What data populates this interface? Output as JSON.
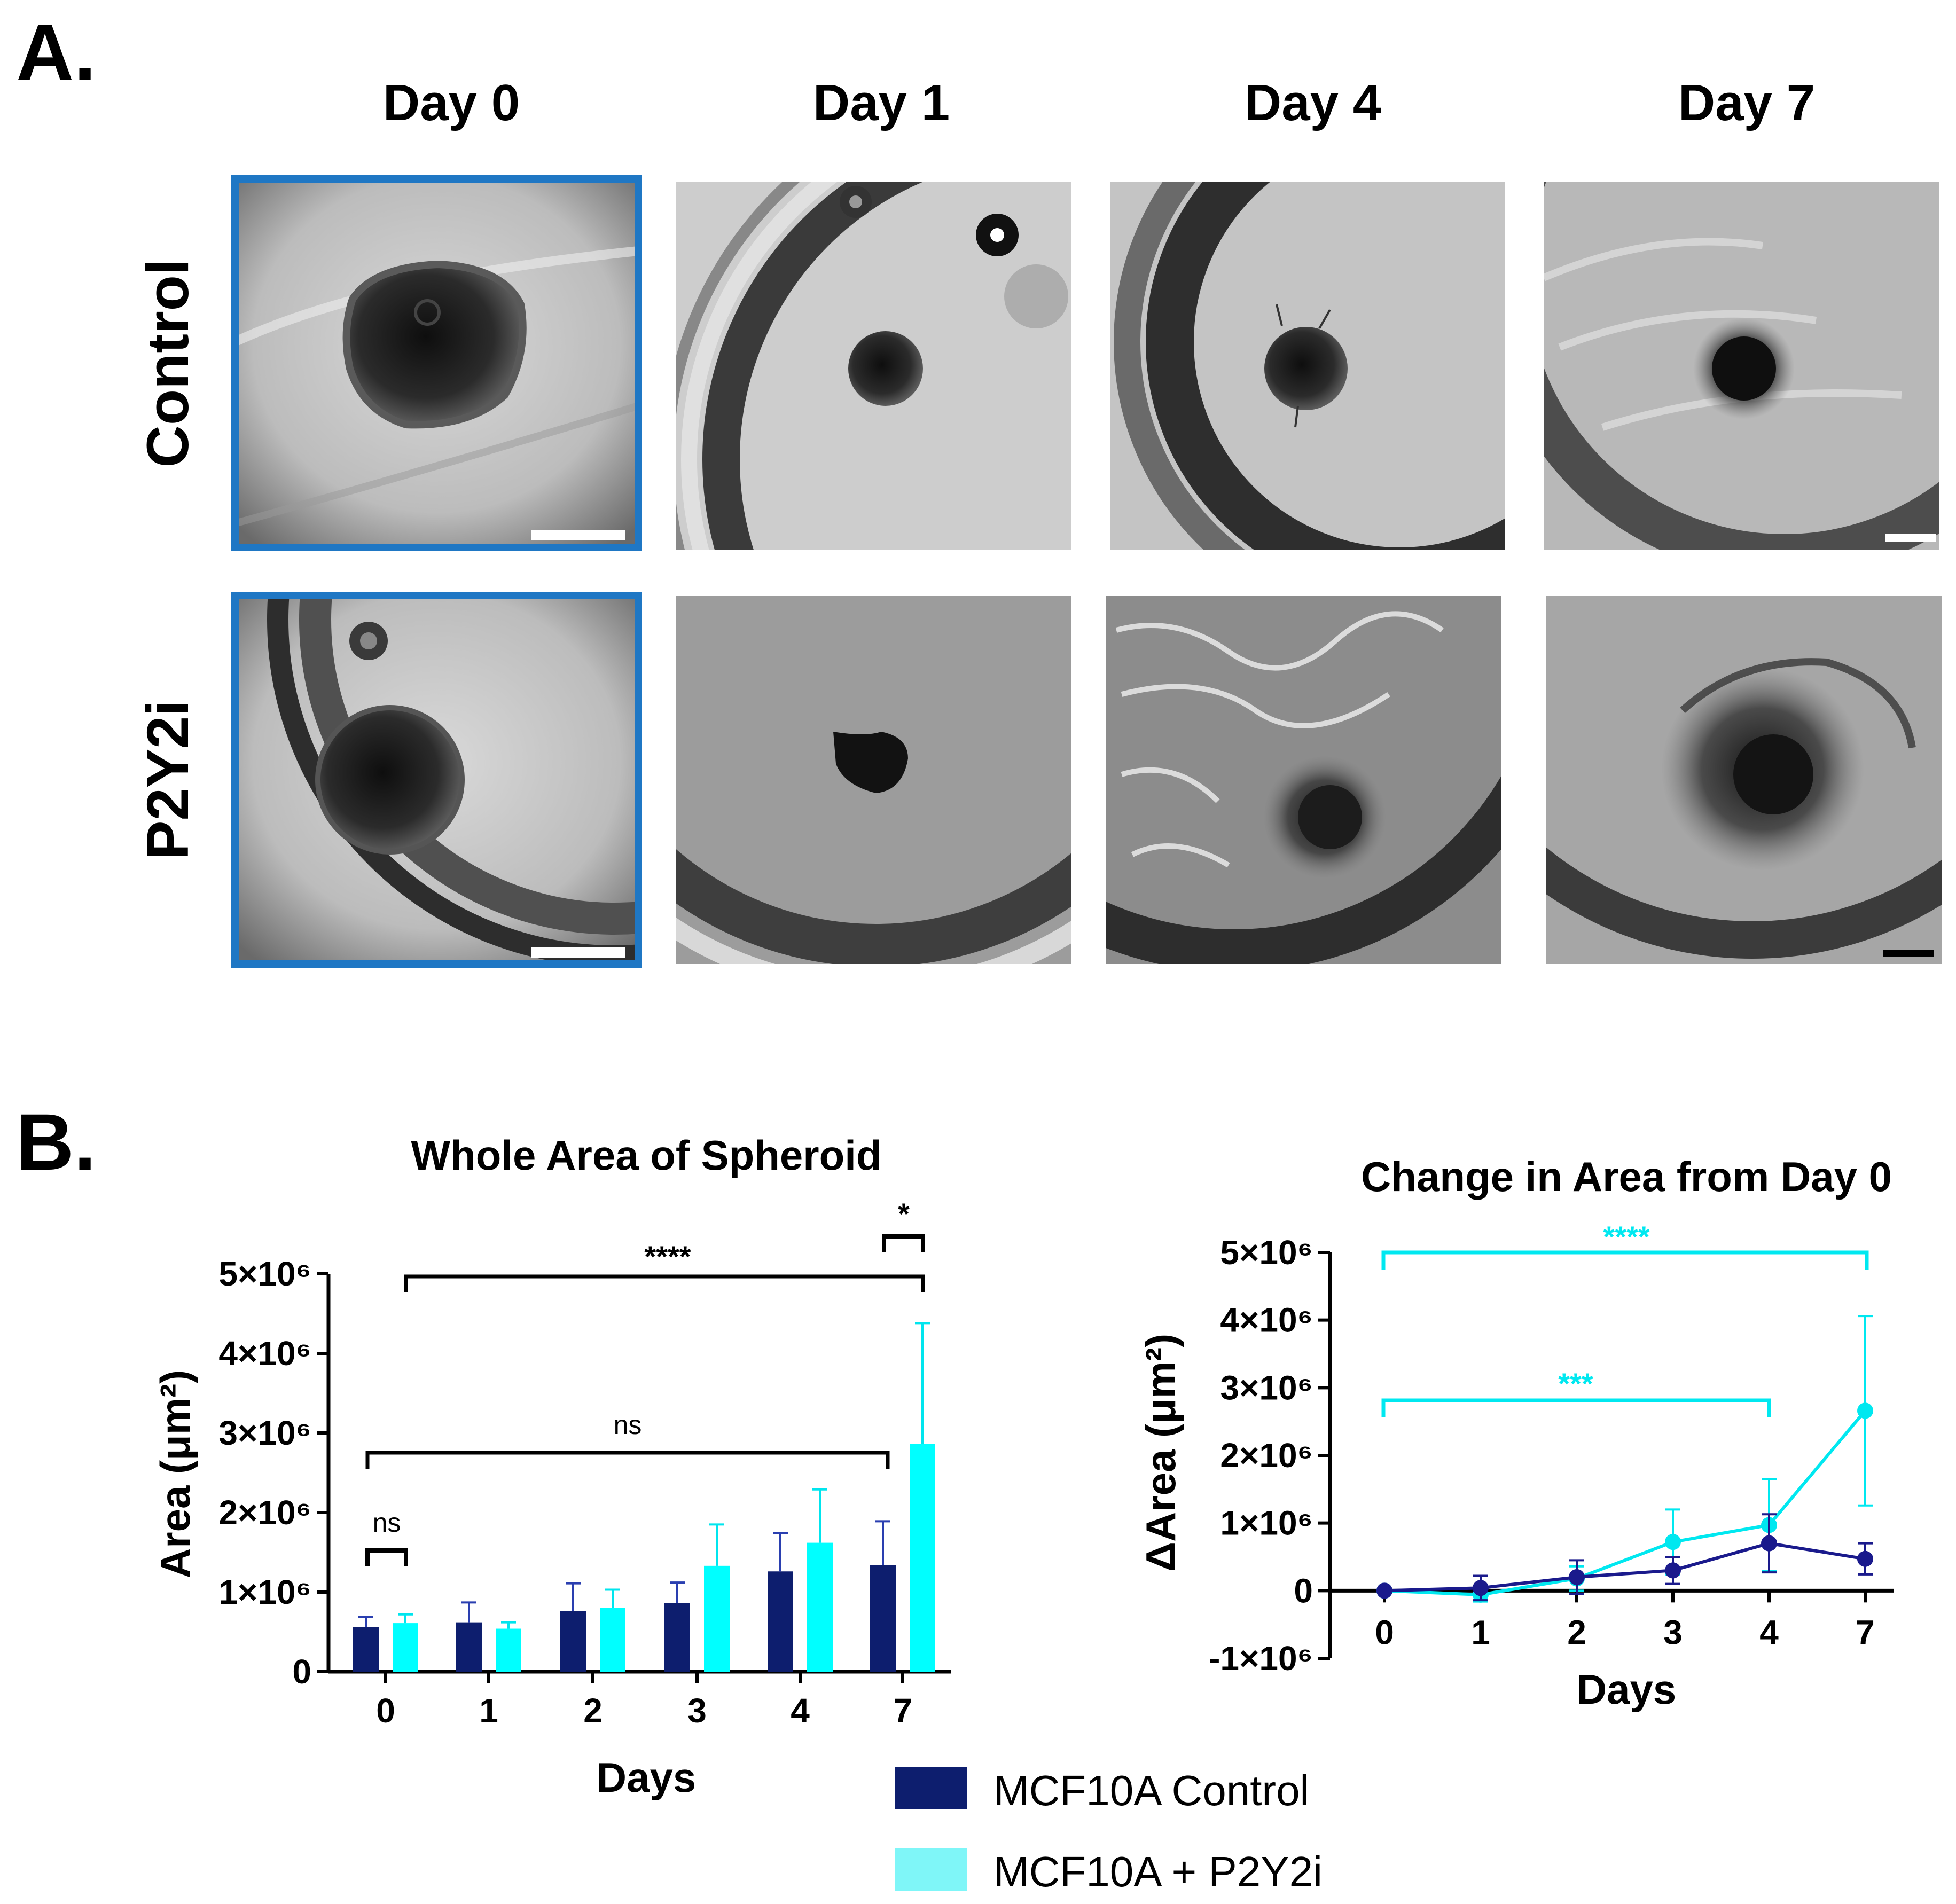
{
  "panel_a": {
    "letter": "A.",
    "day_headers": [
      "Day 0",
      "Day 1",
      "Day 4",
      "Day 7"
    ],
    "row_labels": [
      "Control",
      "P2Y2i"
    ],
    "highlight_color": "#1f77c4"
  },
  "panel_b": {
    "letter": "B."
  },
  "legend": {
    "items": [
      {
        "label": "MCF10A Control",
        "color": "#0d1e6e"
      },
      {
        "label": "MCF10A + P2Y2i",
        "color": "#7ff6f8"
      }
    ]
  },
  "chart_data": [
    {
      "type": "bar",
      "title": "Whole Area of Spheroid",
      "xlabel": "Days",
      "ylabel": "Area (μm²)",
      "categories": [
        "0",
        "1",
        "2",
        "3",
        "4",
        "7"
      ],
      "ylim": [
        0,
        5000000
      ],
      "yticks": [
        "0",
        "1×10⁶",
        "2×10⁶",
        "3×10⁶",
        "4×10⁶",
        "5×10⁶"
      ],
      "series": [
        {
          "name": "MCF10A Control",
          "color": "#0d1e6e",
          "errcolor": "#2a3fb0",
          "values": [
            560000,
            620000,
            760000,
            860000,
            1260000,
            1340000
          ],
          "errors": [
            130000,
            250000,
            350000,
            260000,
            480000,
            550000
          ]
        },
        {
          "name": "MCF10A + P2Y2i",
          "color": "#00ffff",
          "errcolor": "#00e5ee",
          "values": [
            610000,
            540000,
            800000,
            1330000,
            1620000,
            2860000
          ],
          "errors": [
            110000,
            80000,
            230000,
            520000,
            670000,
            1520000
          ]
        }
      ],
      "annotations": [
        {
          "text": "ns",
          "style": "ns"
        },
        {
          "text": "ns",
          "style": "ns"
        },
        {
          "text": "****",
          "style": "bold"
        },
        {
          "text": "*",
          "style": "bold"
        }
      ]
    },
    {
      "type": "line",
      "title": "Change in Area from Day 0",
      "xlabel": "Days",
      "ylabel": "ΔArea (μm²)",
      "categories": [
        "0",
        "1",
        "2",
        "3",
        "4",
        "7"
      ],
      "ylim": [
        -1000000,
        5000000
      ],
      "yticks": [
        "-1×10⁶",
        "0",
        "1×10⁶",
        "2×10⁶",
        "3×10⁶",
        "4×10⁶",
        "5×10⁶"
      ],
      "series": [
        {
          "name": "MCF10A Control",
          "color": "#1a1a8c",
          "values": [
            0,
            40000,
            200000,
            300000,
            700000,
            470000
          ],
          "errors": [
            20000,
            180000,
            250000,
            200000,
            430000,
            230000
          ]
        },
        {
          "name": "MCF10A + P2Y2i",
          "color": "#00e8f0",
          "values": [
            0,
            -60000,
            180000,
            720000,
            970000,
            2660000
          ],
          "errors": [
            20000,
            100000,
            180000,
            480000,
            680000,
            1400000
          ]
        }
      ],
      "annotations": [
        {
          "text": "****",
          "color": "#00e8f0"
        },
        {
          "text": "***",
          "color": "#00e8f0"
        }
      ]
    }
  ]
}
